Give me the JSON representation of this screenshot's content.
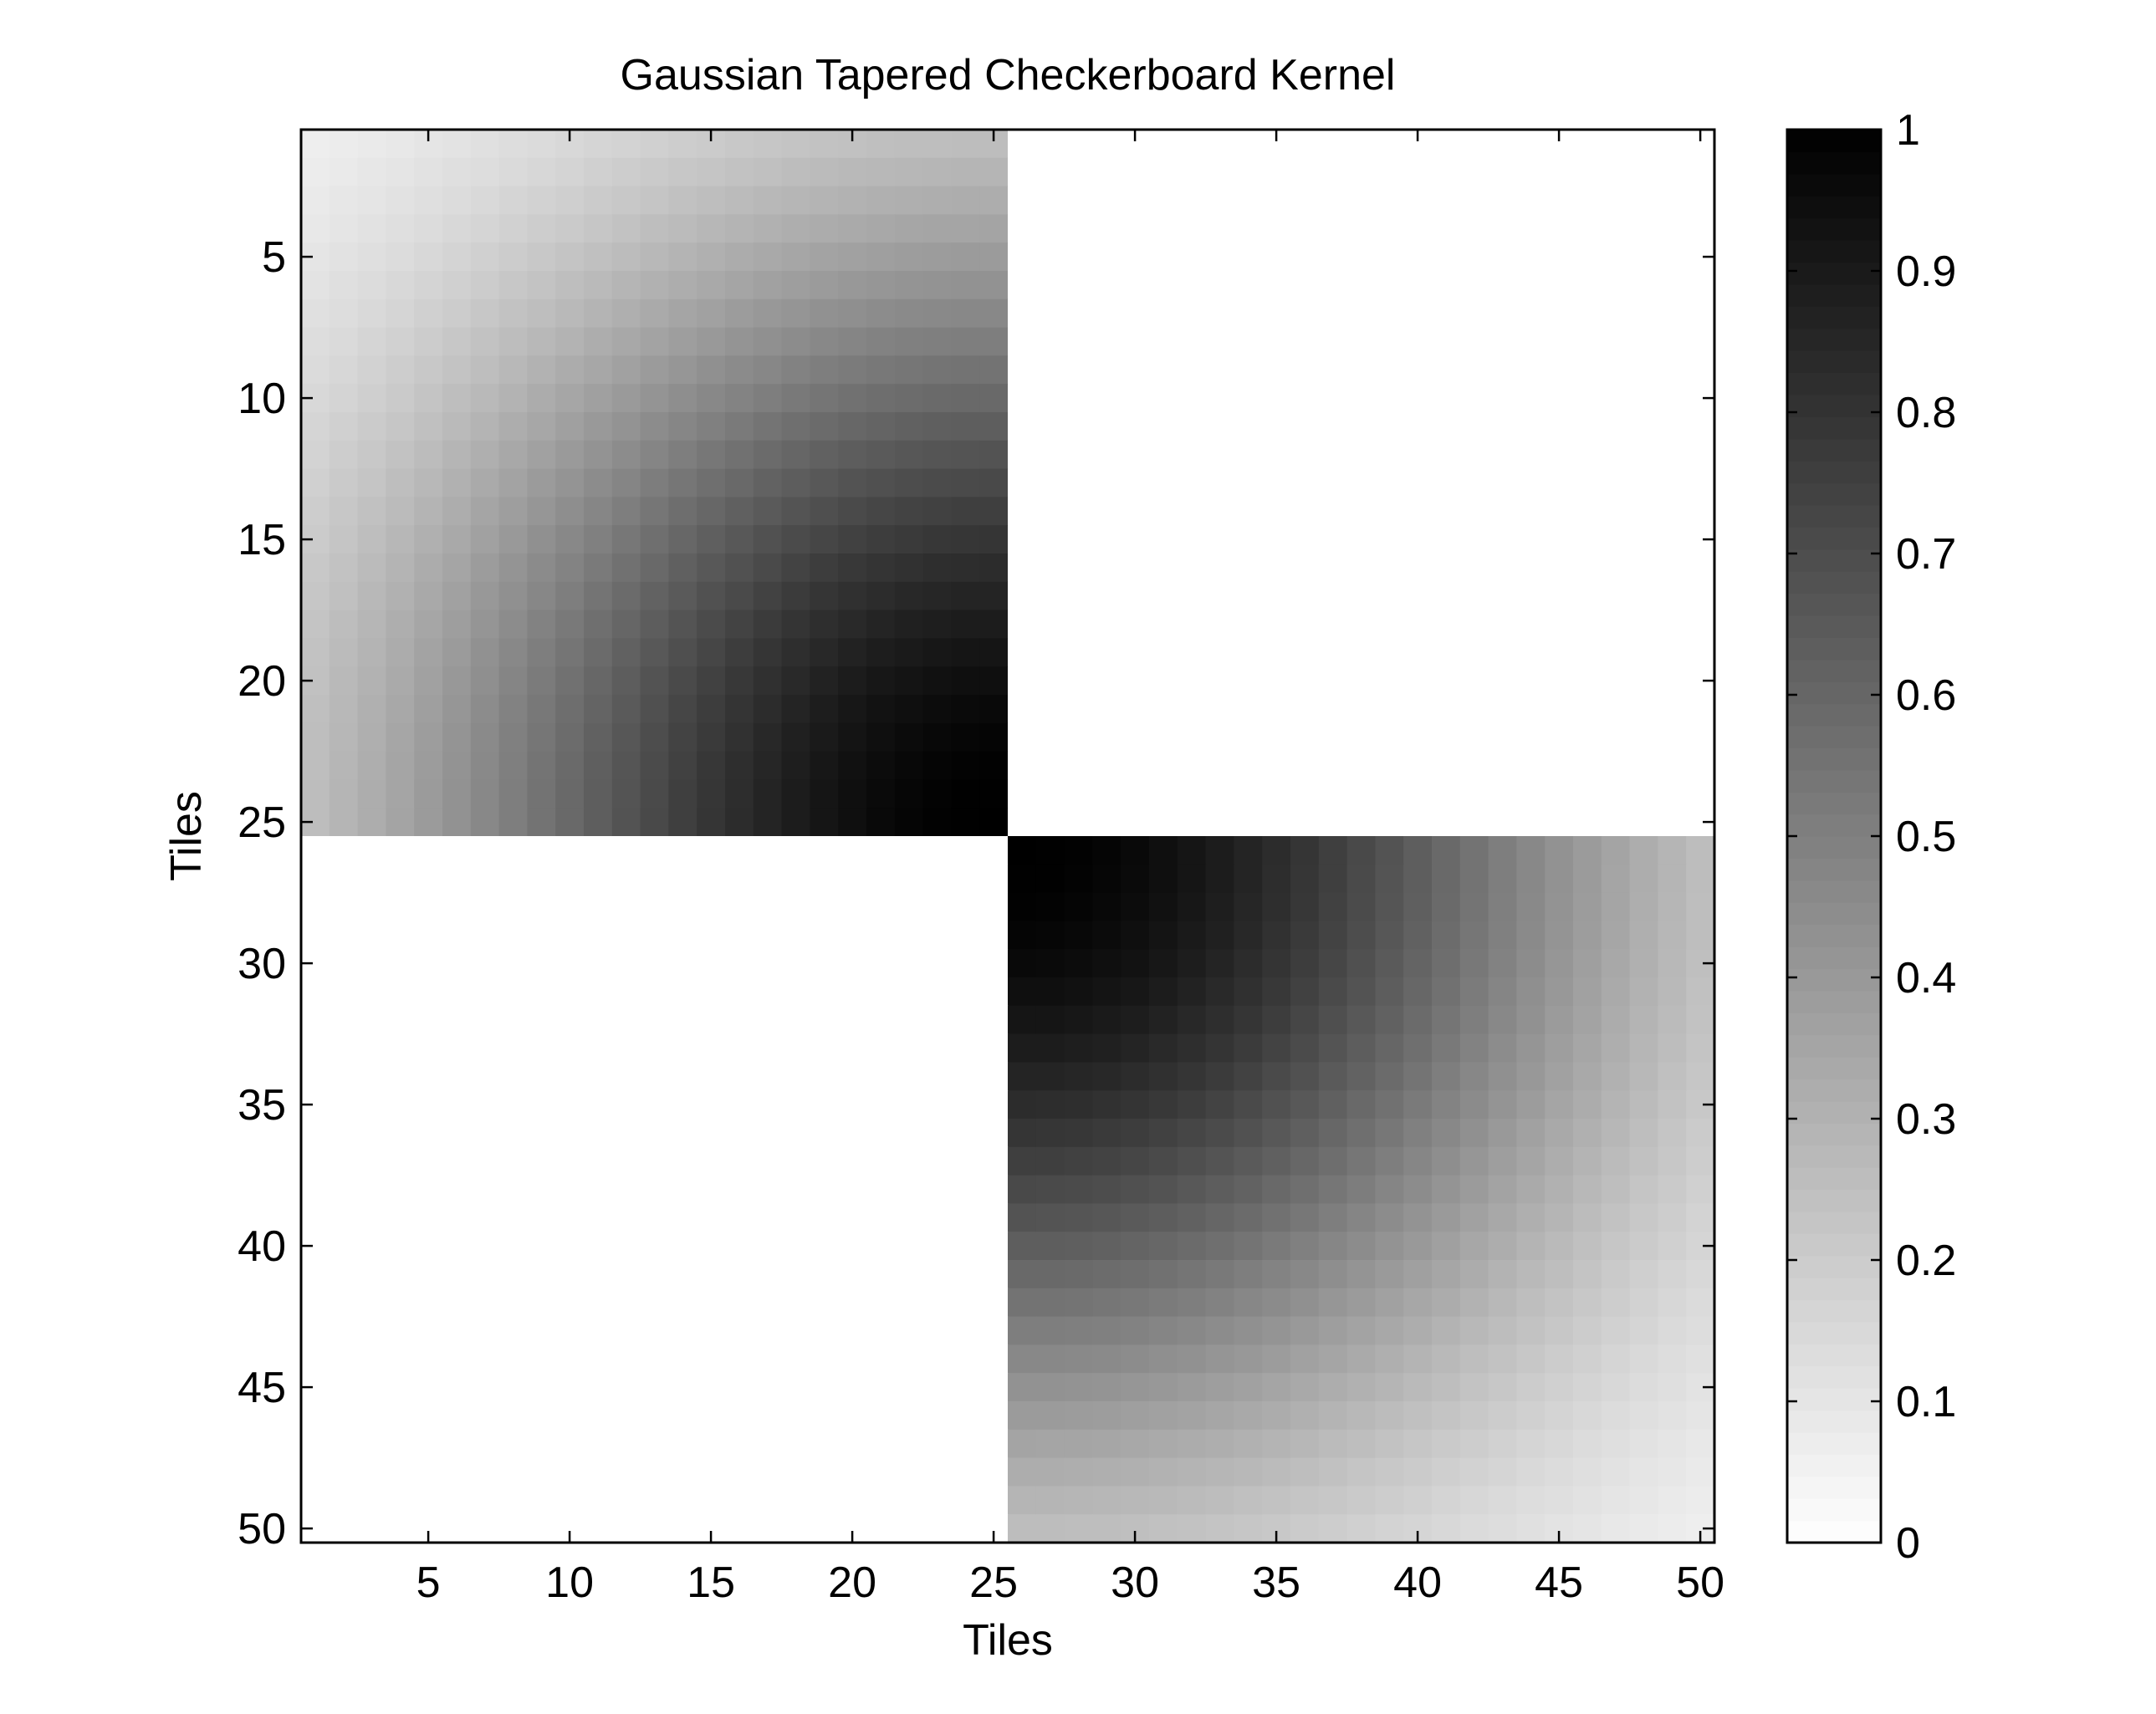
{
  "chart_data": {
    "type": "heatmap",
    "title": "Gaussian Tapered Checkerboard Kernel",
    "xlabel": "Tiles",
    "ylabel": "Tiles",
    "x_range": [
      1,
      50
    ],
    "y_range": [
      1,
      50
    ],
    "y_direction": "top-down",
    "x_ticks": [
      5,
      10,
      15,
      20,
      25,
      30,
      35,
      40,
      45,
      50
    ],
    "y_ticks": [
      5,
      10,
      15,
      20,
      25,
      30,
      35,
      40,
      45,
      50
    ],
    "grid": false,
    "colormap": "gray (0 = white, 1 = black)",
    "colorbar": {
      "position": "right",
      "range": [
        0,
        1
      ],
      "ticks": [
        0,
        0.1,
        0.2,
        0.3,
        0.4,
        0.5,
        0.6,
        0.7,
        0.8,
        0.9,
        1
      ],
      "tick_labels": [
        "0",
        "0.1",
        "0.2",
        "0.3",
        "0.4",
        "0.5",
        "0.6",
        "0.7",
        "0.8",
        "0.9",
        "1"
      ]
    },
    "value_model": {
      "n": 50,
      "block_size": 25,
      "peak_value": 1,
      "corner_value": 0,
      "off_diagonal_blocks_value": 0,
      "gaussian_sigma_tiles": 14.6
    }
  }
}
